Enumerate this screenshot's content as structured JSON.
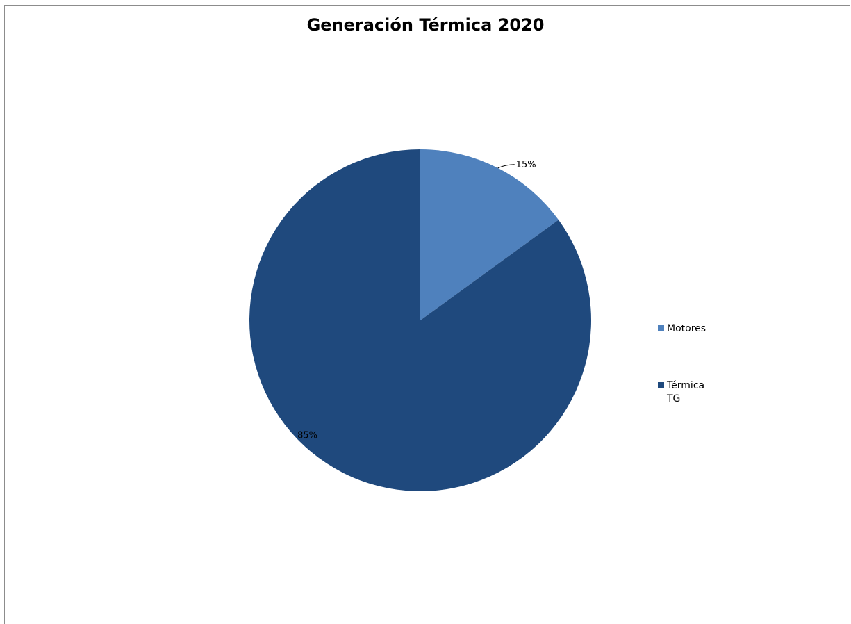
{
  "chart_data": {
    "type": "pie",
    "title": "Generación Térmica 2020",
    "slices": [
      {
        "label": "Motores",
        "value": 15,
        "data_label": "15%",
        "color": "#4F81BD"
      },
      {
        "label": "Térmica TG",
        "value": 85,
        "data_label": "85%",
        "color": "#1F497D"
      }
    ],
    "legend_position": "right"
  }
}
